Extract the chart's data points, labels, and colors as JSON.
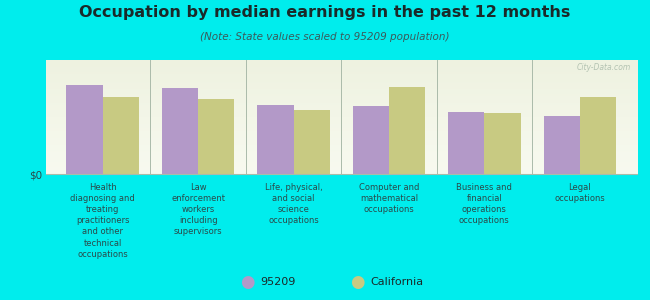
{
  "title": "Occupation by median earnings in the past 12 months",
  "subtitle": "(Note: State values scaled to 95209 population)",
  "background_color": "#00eded",
  "plot_bg_top": "#eef2e0",
  "plot_bg_bottom": "#f8faf0",
  "categories": [
    "Health\ndiagnosing and\ntreating\npractitioners\nand other\ntechnical\noccupations",
    "Law\nenforcement\nworkers\nincluding\nsupervisors",
    "Life, physical,\nand social\nscience\noccupations",
    "Computer and\nmathematical\noccupations",
    "Business and\nfinancial\noperations\noccupations",
    "Legal\noccupations"
  ],
  "values_95209": [
    0.82,
    0.79,
    0.64,
    0.63,
    0.57,
    0.53
  ],
  "values_california": [
    0.71,
    0.69,
    0.59,
    0.8,
    0.56,
    0.71
  ],
  "color_95209": "#b399c8",
  "color_california": "#c8ca82",
  "bar_width": 0.38,
  "ylabel": "$0",
  "legend_95209": "95209",
  "legend_california": "California",
  "watermark": "City-Data.com",
  "title_color": "#1a2a2a",
  "subtitle_color": "#3a5a5a",
  "tick_label_color": "#2a4a4a",
  "separator_color": "#aabbaa",
  "ylim": [
    0,
    1.05
  ]
}
